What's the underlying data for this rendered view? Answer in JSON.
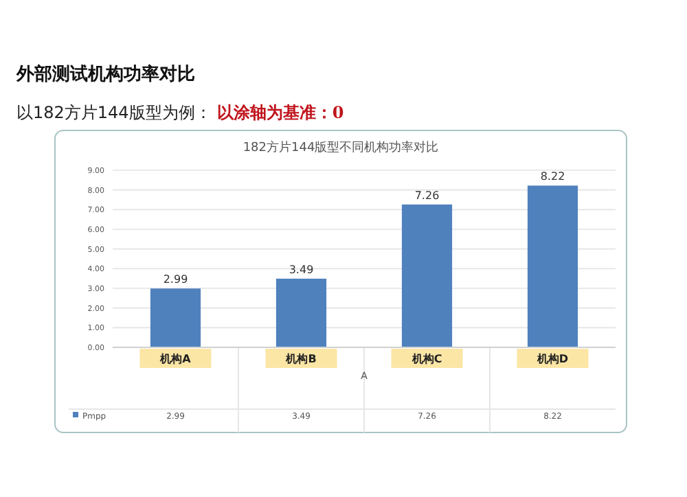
{
  "chart_data": {
    "type": "bar",
    "title": "182方片144版型不同机构功率对比",
    "subtitle": "以182方片144版型为例：",
    "annotations": [
      "外部测试机构功率对比",
      "以涂轴为基准：0",
      "2.99",
      "3.49",
      "7.26",
      "8.22"
    ],
    "xlabel": "A",
    "categories": [
      "机构A",
      "机构B",
      "机构C",
      "机构D"
    ],
    "series": [
      {
        "name": "Pmpp",
        "color": "#4f81bd",
        "values": [
          2.99,
          3.49,
          7.26,
          8.22
        ],
        "value_labels": [
          "2.99",
          "3.49",
          "7.26",
          "8.22"
        ]
      }
    ],
    "ylim": [
      0,
      9
    ],
    "yticks": [
      {
        "value": 0,
        "label": "0.00"
      },
      {
        "value": 1,
        "label": "1.00"
      },
      {
        "value": 2,
        "label": "2.00"
      },
      {
        "value": 3,
        "label": "3.00"
      },
      {
        "value": 4,
        "label": "4.00"
      },
      {
        "value": 5,
        "label": "5.00"
      },
      {
        "value": 6,
        "label": "6.00"
      },
      {
        "value": 7,
        "label": "7.00"
      },
      {
        "value": 8,
        "label": "8.00"
      },
      {
        "value": 9,
        "label": "9.00"
      }
    ],
    "grid": "y",
    "legend": "bottom"
  }
}
